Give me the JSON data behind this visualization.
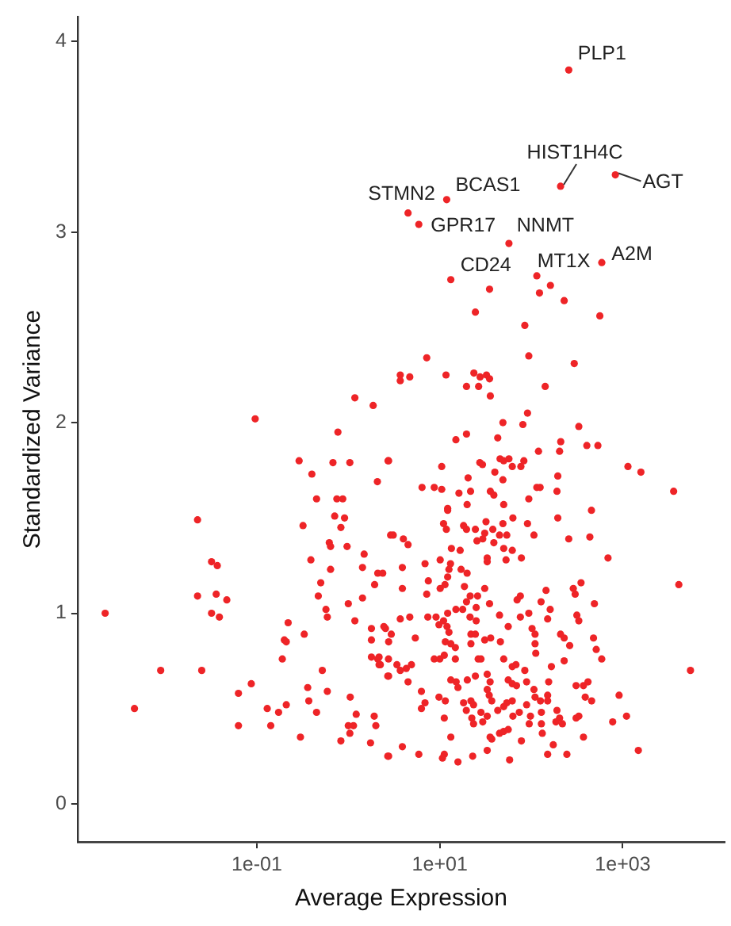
{
  "chart_data": {
    "type": "scatter",
    "xlabel": "Average Expression",
    "ylabel": "Standardized Variance",
    "log": "x",
    "marker": "circle",
    "grid": false,
    "legend": false,
    "xlim": [
      0.0011,
      13000
    ],
    "ylim": [
      -0.2,
      4.13
    ],
    "xticks": [
      {
        "value": 0.1,
        "label": "1e-01"
      },
      {
        "value": 10,
        "label": "1e+01"
      },
      {
        "value": 1000,
        "label": "1e+03"
      }
    ],
    "yticks": [
      0,
      1,
      2,
      3,
      4
    ],
    "annotations": [
      {
        "text": "PLP1",
        "x": 257,
        "y": 3.85
      },
      {
        "text": "HIST1H4C",
        "x": 209,
        "y": 3.24
      },
      {
        "text": "AGT",
        "x": 830,
        "y": 3.3
      },
      {
        "text": "BCAS1",
        "x": 11.9,
        "y": 3.17
      },
      {
        "text": "STMN2",
        "x": 4.5,
        "y": 3.1
      },
      {
        "text": "GPR17",
        "x": 5.9,
        "y": 3.04
      },
      {
        "text": "NNMT",
        "x": 57,
        "y": 2.94
      },
      {
        "text": "MT1X",
        "x": 115,
        "y": 2.77
      },
      {
        "text": "A2M",
        "x": 590,
        "y": 2.84
      },
      {
        "text": "CD24",
        "x": 13.2,
        "y": 2.75
      }
    ],
    "x": [
      257,
      209,
      830,
      11.9,
      4.5,
      5.9,
      57,
      115,
      590,
      13.2,
      35,
      123,
      162,
      229,
      24.5,
      562,
      1.18,
      1.87,
      0.096,
      0.77,
      0.29,
      0.68,
      1.04,
      2.72,
      0.4,
      2.08,
      0.45,
      0.75,
      0.87,
      0.0225,
      0.71,
      0.91,
      0.32,
      0.83,
      0.62,
      0.64,
      0.97,
      1.49,
      0.39,
      0.032,
      0.037,
      0.64,
      1.43,
      2.1,
      2.38,
      0.5,
      1.94,
      0.0225,
      0.036,
      0.047,
      0.47,
      1.0,
      1.43,
      0.0022,
      0.032,
      0.57,
      2.9,
      85,
      7.2,
      94,
      295,
      3.7,
      3.7,
      4.7,
      11.7,
      23.6,
      27.6,
      32.4,
      35,
      19.6,
      26.6,
      142,
      35.7,
      91,
      81,
      49,
      331,
      19.6,
      15,
      43,
      210,
      204,
      405,
      535,
      120,
      2.76,
      27.4,
      29.3,
      45.6,
      50,
      57,
      83,
      62,
      77,
      10.5,
      40,
      1140,
      1580,
      20.4,
      49,
      195,
      6.4,
      8.7,
      10.5,
      16.2,
      21.7,
      35.7,
      39,
      115,
      125,
      191,
      3600,
      94,
      12.2,
      12.2,
      19.9,
      50,
      63,
      195,
      455,
      11,
      11.8,
      18.2,
      19.6,
      24.5,
      32,
      38,
      45,
      54,
      49,
      91,
      107,
      31,
      25.5,
      29.5,
      39,
      3.1,
      4.0,
      4.5,
      13.4,
      16.7,
      50,
      62,
      257,
      437,
      33,
      33,
      53,
      78,
      690,
      10.1,
      6.9,
      13.1,
      12.6,
      3.9,
      17.1,
      19.9,
      12.2,
      7.5,
      11.4,
      18.6,
      31,
      350,
      4100,
      3.9,
      7.2,
      10.1,
      21.5,
      25.9,
      19.6,
      25,
      35,
      70,
      76,
      128,
      145,
      288,
      302,
      490,
      161,
      315,
      12.2,
      15,
      17.8,
      45,
      94,
      0.039,
      0.0089,
      0.025,
      0.0046,
      0.063,
      0.087,
      0.063,
      0.13,
      0.142,
      0.173,
      0.21,
      0.19,
      0.2,
      0.21,
      0.22,
      0.33,
      0.3,
      0.36,
      0.37,
      0.45,
      0.52,
      0.59,
      0.59,
      0.83,
      1.05,
      1.0,
      1.04,
      1.14,
      1.22,
      1.18,
      1.75,
      1.79,
      1.79,
      1.92,
      2.0,
      1.79,
      2.17,
      2.17,
      2.55,
      2.76,
      2.76,
      2.76,
      2.45,
      2.95,
      3.7,
      4.7,
      5.4,
      7.4,
      9.1,
      9.8,
      12,
      21.4,
      25,
      21.9,
      21.9,
      24.5,
      31,
      36,
      46,
      56,
      76,
      102,
      110,
      110,
      112,
      151,
      209,
      229,
      263,
      331,
      479,
      513,
      589,
      11,
      12.6,
      11.5,
      13.2,
      11.2,
      14.8,
      14.8,
      8.7,
      10,
      2.1,
      2.24,
      2.75,
      3.4,
      2.7,
      3.7,
      4.3,
      4.9,
      4.5,
      13.2,
      15.1,
      15.8,
      20,
      24.5,
      26.3,
      28.2,
      33,
      35.5,
      33,
      34.7,
      37,
      50,
      62,
      68,
      56,
      62,
      69,
      85,
      89,
      107,
      110,
      155,
      166,
      229,
      309,
      372,
      417,
      389,
      457,
      151,
      151,
      126,
      89,
      6.3,
      6.9,
      6.3,
      9.8,
      11.5,
      11.2,
      18.2,
      21.9,
      23.4,
      19.5,
      22.4,
      23.4,
      28.2,
      29.5,
      33,
      43,
      54,
      62,
      50,
      63,
      74,
      98,
      129,
      95,
      129,
      132,
      191,
      204,
      186,
      219,
      309,
      331,
      372,
      776,
      912,
      1100,
      37,
      35.5,
      45,
      50,
      56,
      78,
      13.2,
      11.2,
      10.7,
      15.8,
      22.9,
      33,
      58,
      151,
      174,
      245,
      1480,
      5500,
      2.7,
      3.9,
      5.9
    ],
    "series": [
      {
        "color": "#ee2427",
        "values": [
          3.85,
          3.24,
          3.3,
          3.17,
          3.1,
          3.04,
          2.94,
          2.77,
          2.84,
          2.75,
          2.7,
          2.68,
          2.72,
          2.64,
          2.58,
          2.56,
          2.13,
          2.09,
          2.02,
          1.95,
          1.8,
          1.79,
          1.79,
          1.8,
          1.73,
          1.69,
          1.6,
          1.6,
          1.6,
          1.49,
          1.51,
          1.5,
          1.46,
          1.45,
          1.37,
          1.35,
          1.35,
          1.31,
          1.28,
          1.27,
          1.25,
          1.23,
          1.24,
          1.21,
          1.21,
          1.16,
          1.15,
          1.09,
          1.1,
          1.07,
          1.09,
          1.05,
          1.08,
          1.0,
          1.0,
          1.02,
          1.41,
          2.51,
          2.34,
          2.35,
          2.31,
          2.25,
          2.22,
          2.24,
          2.25,
          2.26,
          2.24,
          2.25,
          2.23,
          2.19,
          2.19,
          2.19,
          2.14,
          2.05,
          1.99,
          2.0,
          1.98,
          1.94,
          1.91,
          1.92,
          1.9,
          1.85,
          1.88,
          1.88,
          1.85,
          1.8,
          1.79,
          1.78,
          1.81,
          1.8,
          1.81,
          1.8,
          1.77,
          1.77,
          1.77,
          1.74,
          1.77,
          1.74,
          1.71,
          1.7,
          1.72,
          1.66,
          1.66,
          1.65,
          1.63,
          1.64,
          1.64,
          1.62,
          1.66,
          1.66,
          1.64,
          1.64,
          1.6,
          1.55,
          1.54,
          1.57,
          1.57,
          1.5,
          1.5,
          1.54,
          1.47,
          1.44,
          1.46,
          1.44,
          1.44,
          1.48,
          1.44,
          1.41,
          1.41,
          1.47,
          1.47,
          1.41,
          1.42,
          1.38,
          1.39,
          1.37,
          1.41,
          1.39,
          1.36,
          1.34,
          1.33,
          1.34,
          1.33,
          1.39,
          1.4,
          1.29,
          1.27,
          1.28,
          1.29,
          1.29,
          1.28,
          1.26,
          1.26,
          1.23,
          1.24,
          1.23,
          1.21,
          1.19,
          1.17,
          1.15,
          1.14,
          1.13,
          1.16,
          1.15,
          1.13,
          1.1,
          1.13,
          1.09,
          1.09,
          1.06,
          1.03,
          1.05,
          1.07,
          1.09,
          1.06,
          1.12,
          1.13,
          1.1,
          1.05,
          1.02,
          0.99,
          1.0,
          1.02,
          1.02,
          0.99,
          1.0,
          0.98,
          0.7,
          0.7,
          0.5,
          0.58,
          0.63,
          0.41,
          0.5,
          0.41,
          0.48,
          0.52,
          0.76,
          0.86,
          0.85,
          0.95,
          0.89,
          0.35,
          0.61,
          0.54,
          0.48,
          0.7,
          0.98,
          0.59,
          0.33,
          0.56,
          0.41,
          0.37,
          0.41,
          0.47,
          0.96,
          0.32,
          0.92,
          0.86,
          0.46,
          0.41,
          0.77,
          0.77,
          0.73,
          0.92,
          0.67,
          0.85,
          0.25,
          0.93,
          0.89,
          0.97,
          0.98,
          0.87,
          0.98,
          0.98,
          0.94,
          0.93,
          0.98,
          0.96,
          0.89,
          0.84,
          0.89,
          0.86,
          0.87,
          0.85,
          0.93,
          0.98,
          0.92,
          0.89,
          0.84,
          0.79,
          0.97,
          0.89,
          0.87,
          0.83,
          0.96,
          0.87,
          0.81,
          0.76,
          0.96,
          0.9,
          0.85,
          0.84,
          0.78,
          0.82,
          0.76,
          0.76,
          0.76,
          0.76,
          0.73,
          0.76,
          0.73,
          0.67,
          0.7,
          0.71,
          0.73,
          0.64,
          0.65,
          0.64,
          0.61,
          0.65,
          0.67,
          0.76,
          0.76,
          0.68,
          0.64,
          0.6,
          0.57,
          0.54,
          0.76,
          0.72,
          0.73,
          0.65,
          0.63,
          0.62,
          0.7,
          0.64,
          0.6,
          0.56,
          0.64,
          0.72,
          0.75,
          0.62,
          0.62,
          0.64,
          0.56,
          0.54,
          0.57,
          0.54,
          0.54,
          0.52,
          0.59,
          0.53,
          0.5,
          0.56,
          0.54,
          0.45,
          0.53,
          0.54,
          0.52,
          0.49,
          0.45,
          0.42,
          0.48,
          0.43,
          0.46,
          0.49,
          0.53,
          0.54,
          0.51,
          0.46,
          0.48,
          0.46,
          0.48,
          0.42,
          0.42,
          0.37,
          0.49,
          0.45,
          0.43,
          0.42,
          0.45,
          0.46,
          0.35,
          0.43,
          0.57,
          0.46,
          0.34,
          0.35,
          0.37,
          0.38,
          0.39,
          0.33,
          0.35,
          0.26,
          0.24,
          0.22,
          0.25,
          0.28,
          0.23,
          0.26,
          0.31,
          0.26,
          0.28,
          0.7,
          0.25,
          0.3,
          0.26
        ]
      }
    ]
  }
}
